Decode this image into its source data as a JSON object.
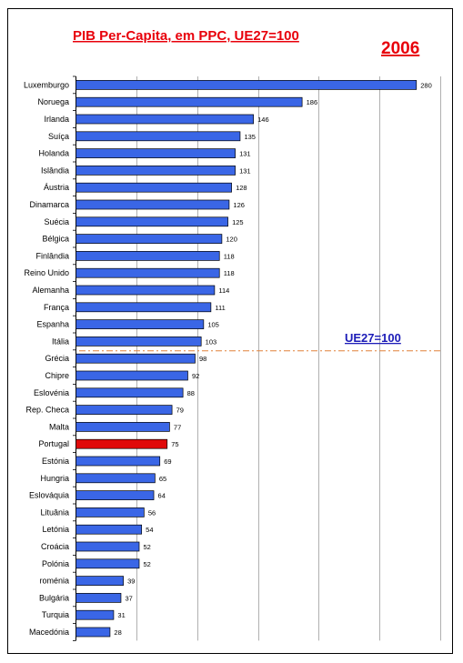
{
  "chart_data": {
    "type": "bar",
    "orientation": "horizontal",
    "title": "PIB Per-Capita, em PPC, UE27=100",
    "year_label": "2006",
    "reference": {
      "label": "UE27=100",
      "value": 100
    },
    "categories": [
      "Luxemburgo",
      "Noruega",
      "Irlanda",
      "Suíça",
      "Holanda",
      "Islândia",
      "Áustria",
      "Dinamarca",
      "Suécia",
      "Bélgica",
      "Finlândia",
      "Reino Unido",
      "Alemanha",
      "França",
      "Espanha",
      "Itália",
      "Grécia",
      "Chipre",
      "Eslovénia",
      "Rep. Checa",
      "Malta",
      "Portugal",
      "Estónia",
      "Hungria",
      "Eslováquia",
      "Lituânia",
      "Letónia",
      "Croácia",
      "Polónia",
      "roménia",
      "Bulgária",
      "Turquia",
      "Macedónia"
    ],
    "values": [
      280,
      186,
      146,
      135,
      131,
      131,
      128,
      126,
      125,
      120,
      118,
      118,
      114,
      111,
      105,
      103,
      98,
      92,
      88,
      79,
      77,
      75,
      69,
      65,
      64,
      56,
      54,
      52,
      52,
      39,
      37,
      31,
      28
    ],
    "highlight": "Portugal",
    "xlim": [
      0,
      300
    ],
    "grid": true,
    "legend": "none",
    "colors": {
      "bar": "#3a66e6",
      "highlight": "#e00a0a",
      "bar_outline": "#000000",
      "title": "#e8000b",
      "reference_label": "#1c1cb8",
      "reference_line": "#e0803a",
      "grid": "#b0b0b0"
    }
  }
}
